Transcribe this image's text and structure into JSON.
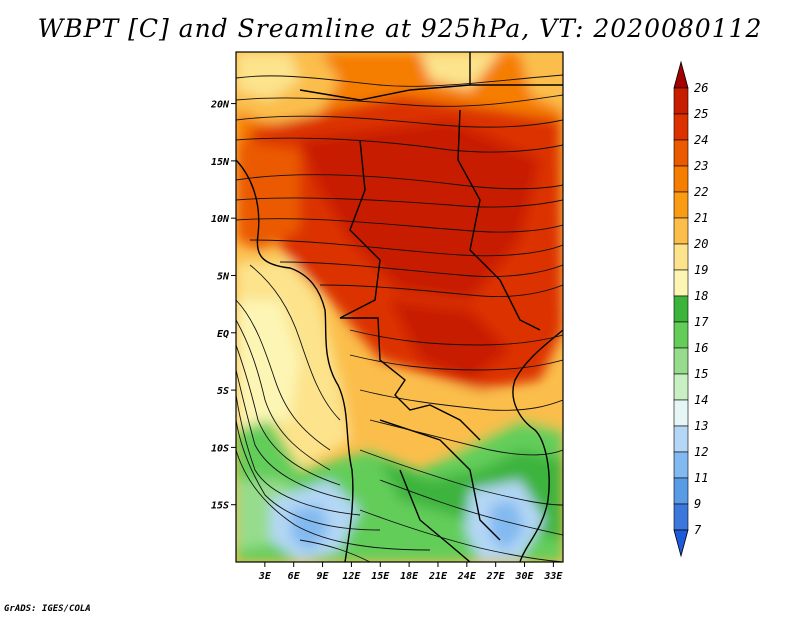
{
  "title": "WBPT [C] and Sreamline at 925hPa, VT: 2020080112",
  "footer": "GrADS: IGES/COLA",
  "map": {
    "lon_range": [
      0,
      34
    ],
    "lat_range": [
      -20,
      24.5
    ],
    "x_ticks": [
      "3E",
      "6E",
      "9E",
      "12E",
      "15E",
      "18E",
      "21E",
      "24E",
      "27E",
      "30E",
      "33E"
    ],
    "x_tick_values": [
      3,
      6,
      9,
      12,
      15,
      18,
      21,
      24,
      27,
      30,
      33
    ],
    "y_ticks": [
      "20N",
      "15N",
      "10N",
      "5N",
      "EQ",
      "5S",
      "10S",
      "15S"
    ],
    "y_tick_values": [
      20,
      15,
      10,
      5,
      0,
      -5,
      -10,
      -15
    ]
  },
  "colorbar": {
    "labels": [
      "26",
      "25",
      "24",
      "23",
      "22",
      "21",
      "20",
      "19",
      "18",
      "17",
      "16",
      "15",
      "14",
      "13",
      "12",
      "11",
      "9",
      "7"
    ],
    "colors": [
      "#a50000",
      "#c81e00",
      "#dc3200",
      "#eb5a00",
      "#f57d00",
      "#fa9b14",
      "#fbbe4b",
      "#fce38c",
      "#fdf5b4",
      "#3cb43c",
      "#64cd5a",
      "#96dc8c",
      "#c8f0c3",
      "#e6f5f5",
      "#b4d7f5",
      "#82b9f0",
      "#5a9be6",
      "#3c78dc",
      "#1e5adc"
    ]
  }
}
